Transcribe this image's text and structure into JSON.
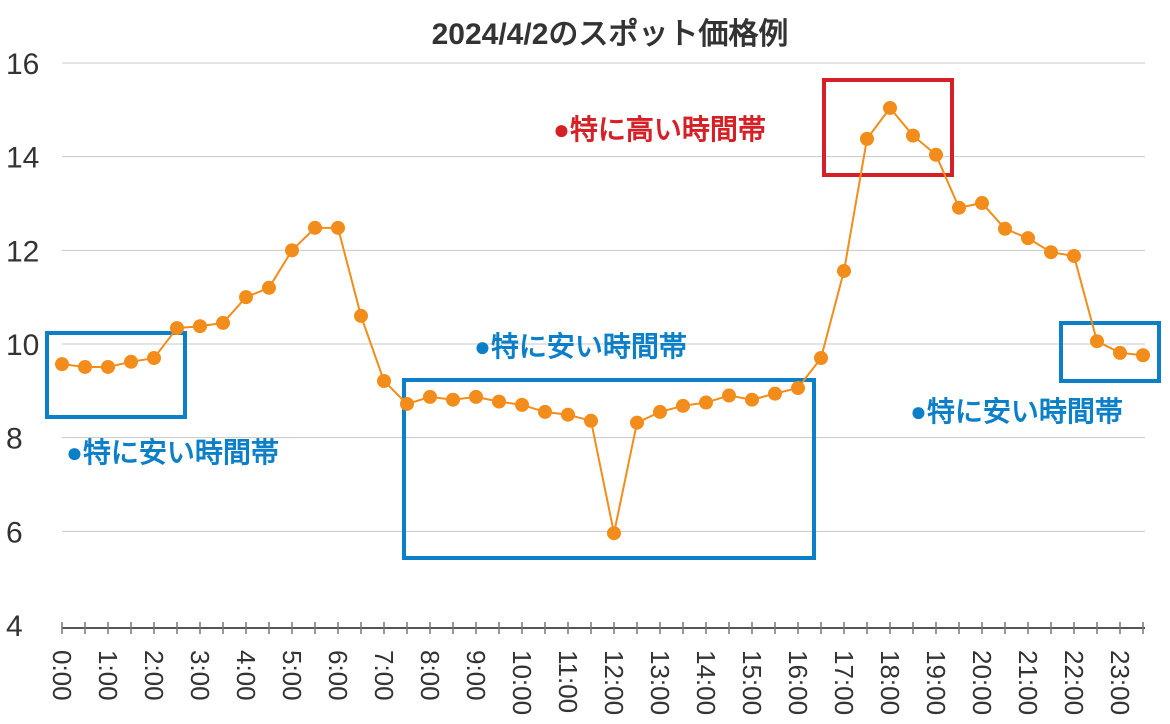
{
  "chart_data": {
    "type": "line",
    "title": "2024/4/2のスポット価格例",
    "xlabel": "",
    "ylabel": "",
    "ylim": [
      4,
      16
    ],
    "yticks": [
      4,
      6,
      8,
      10,
      12,
      14,
      16
    ],
    "grid": true,
    "x": [
      "0:00",
      "0:30",
      "1:00",
      "1:30",
      "2:00",
      "2:30",
      "3:00",
      "3:30",
      "4:00",
      "4:30",
      "5:00",
      "5:30",
      "6:00",
      "6:30",
      "7:00",
      "7:30",
      "8:00",
      "8:30",
      "9:00",
      "9:30",
      "10:00",
      "10:30",
      "11:00",
      "11:30",
      "12:00",
      "12:30",
      "13:00",
      "13:30",
      "14:00",
      "14:30",
      "15:00",
      "15:30",
      "16:00",
      "16:30",
      "17:00",
      "17:30",
      "18:00",
      "18:30",
      "19:00",
      "19:30",
      "20:00",
      "20:30",
      "21:00",
      "21:30",
      "22:00",
      "22:30",
      "23:00",
      "23:30"
    ],
    "xtick_labels": [
      "0:00",
      "1:00",
      "2:00",
      "3:00",
      "4:00",
      "5:00",
      "6:00",
      "7:00",
      "8:00",
      "9:00",
      "10:00",
      "11:00",
      "12:00",
      "13:00",
      "14:00",
      "15:00",
      "16:00",
      "17:00",
      "18:00",
      "19:00",
      "20:00",
      "21:00",
      "22:00",
      "23:00"
    ],
    "values": [
      9.57,
      9.51,
      9.51,
      9.62,
      9.7,
      10.34,
      10.38,
      10.45,
      11.0,
      11.2,
      12.0,
      12.48,
      12.48,
      10.6,
      9.21,
      8.72,
      8.87,
      8.81,
      8.87,
      8.77,
      8.7,
      8.55,
      8.49,
      8.36,
      5.96,
      8.32,
      8.55,
      8.68,
      8.75,
      8.9,
      8.81,
      8.94,
      9.06,
      9.7,
      11.56,
      14.38,
      15.04,
      14.45,
      14.04,
      12.91,
      13.01,
      12.46,
      12.26,
      11.96,
      11.88,
      10.06,
      9.81,
      9.76
    ],
    "line_color": "#f28c1a",
    "annotations": [
      {
        "text": "●特に安い時間帯",
        "color": "#0b7fc7",
        "range": [
          "0:00",
          "2:00"
        ]
      },
      {
        "text": "●特に安い時間帯",
        "color": "#0b7fc7",
        "range": [
          "7:30",
          "16:00"
        ]
      },
      {
        "text": "●特に高い時間帯",
        "color": "#d62027",
        "range": [
          "17:30",
          "19:00"
        ]
      },
      {
        "text": "●特に安い時間帯",
        "color": "#0b7fc7",
        "range": [
          "22:30",
          "23:30"
        ]
      }
    ]
  }
}
